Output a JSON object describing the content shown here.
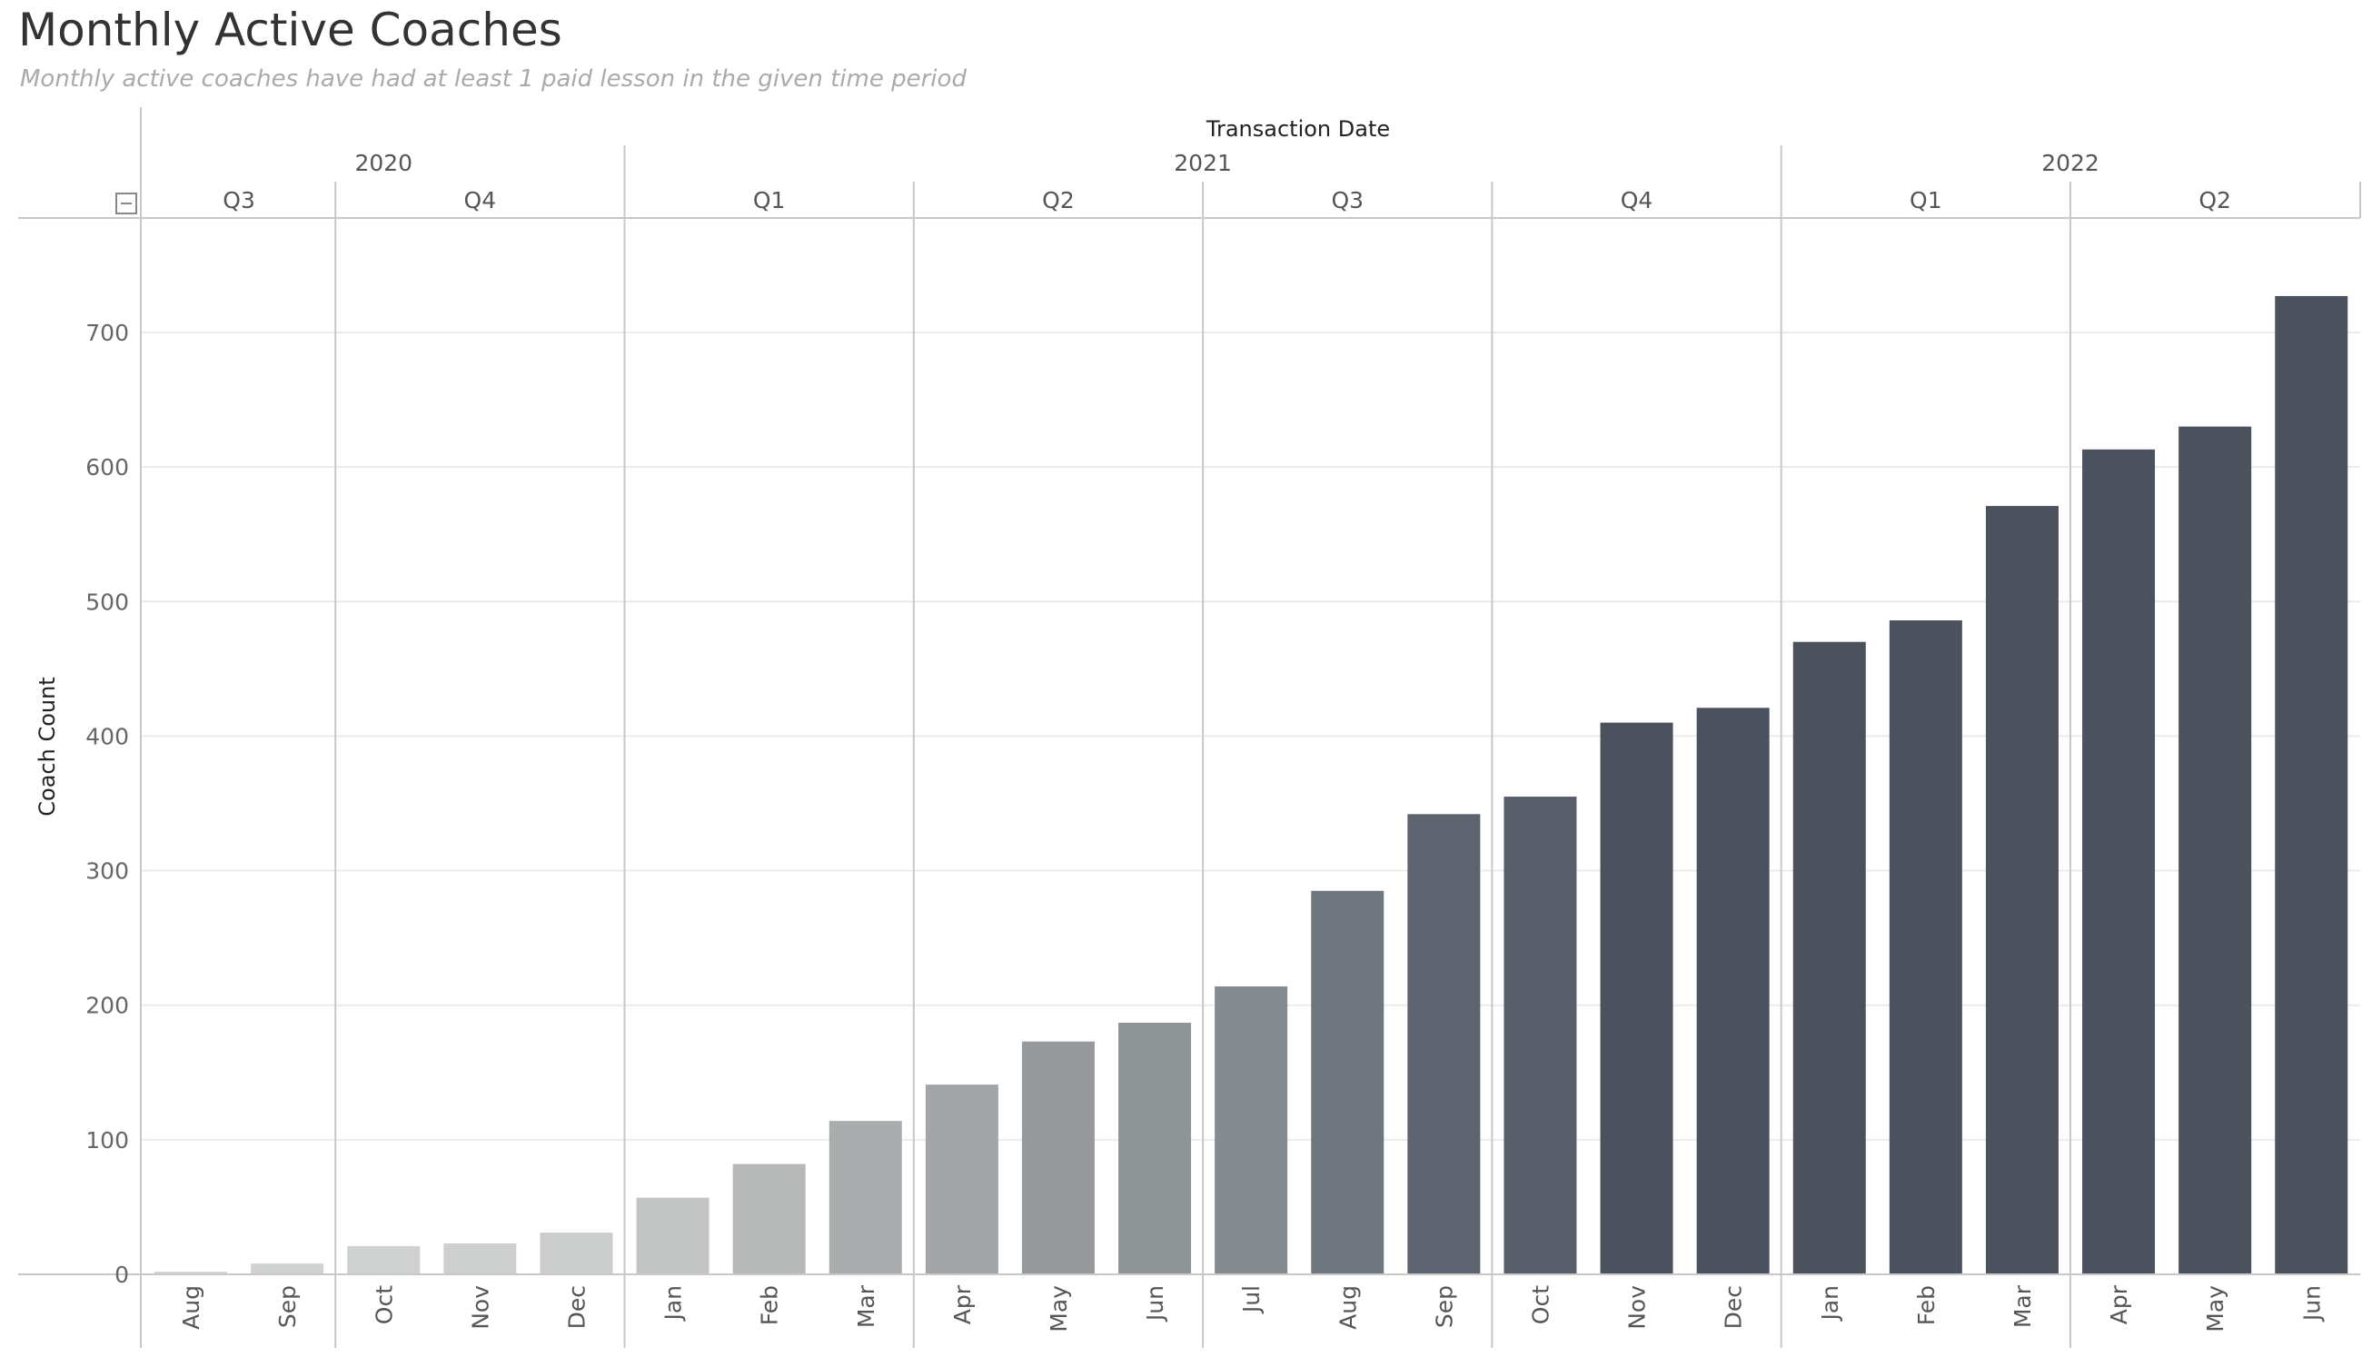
{
  "title": "Monthly Active Coaches",
  "subtitle": "Monthly active coaches have had at least 1 paid lesson in the given time period",
  "chart_data": {
    "type": "bar",
    "title": "Monthly Active Coaches",
    "subtitle": "Monthly active coaches have had at least 1 paid lesson in the given time period",
    "xlabel": "Transaction Date",
    "ylabel": "Coach Count",
    "ylim": [
      0,
      790
    ],
    "yticks": [
      0,
      100,
      200,
      300,
      400,
      500,
      600,
      700
    ],
    "grid": true,
    "color_encoding": "light gray to dark slate by value",
    "years": [
      {
        "label": "2020",
        "start": 0,
        "count": 5
      },
      {
        "label": "2021",
        "start": 5,
        "count": 12
      },
      {
        "label": "2022",
        "start": 17,
        "count": 6
      }
    ],
    "quarters": [
      {
        "label": "Q3",
        "start": 0,
        "count": 2
      },
      {
        "label": "Q4",
        "start": 2,
        "count": 3
      },
      {
        "label": "Q1",
        "start": 5,
        "count": 3
      },
      {
        "label": "Q2",
        "start": 8,
        "count": 3
      },
      {
        "label": "Q3",
        "start": 11,
        "count": 3
      },
      {
        "label": "Q4",
        "start": 14,
        "count": 3
      },
      {
        "label": "Q1",
        "start": 17,
        "count": 3
      },
      {
        "label": "Q2",
        "start": 20,
        "count": 3
      }
    ],
    "categories": [
      "Aug",
      "Sep",
      "Oct",
      "Nov",
      "Dec",
      "Jan",
      "Feb",
      "Mar",
      "Apr",
      "May",
      "Jun",
      "Jul",
      "Aug",
      "Sep",
      "Oct",
      "Nov",
      "Dec",
      "Jan",
      "Feb",
      "Mar",
      "Apr",
      "May",
      "Jun"
    ],
    "values": [
      2,
      8,
      21,
      23,
      31,
      57,
      82,
      114,
      141,
      173,
      187,
      214,
      285,
      342,
      355,
      410,
      421,
      470,
      486,
      571,
      613,
      630,
      727
    ],
    "colors": [
      "#d2d3d3",
      "#d0d1d1",
      "#cfd0d0",
      "#cdcece",
      "#cbcccc",
      "#c3c5c5",
      "#b7b9b9",
      "#aaadae",
      "#a1a5a7",
      "#969a9d",
      "#8f9497",
      "#858b8f",
      "#6f767e",
      "#5d6470",
      "#585f6a",
      "#4b515d",
      "#4b515d",
      "#4b515d",
      "#4b515d",
      "#4b515d",
      "#4b515d",
      "#4b515d",
      "#4b515d"
    ]
  }
}
